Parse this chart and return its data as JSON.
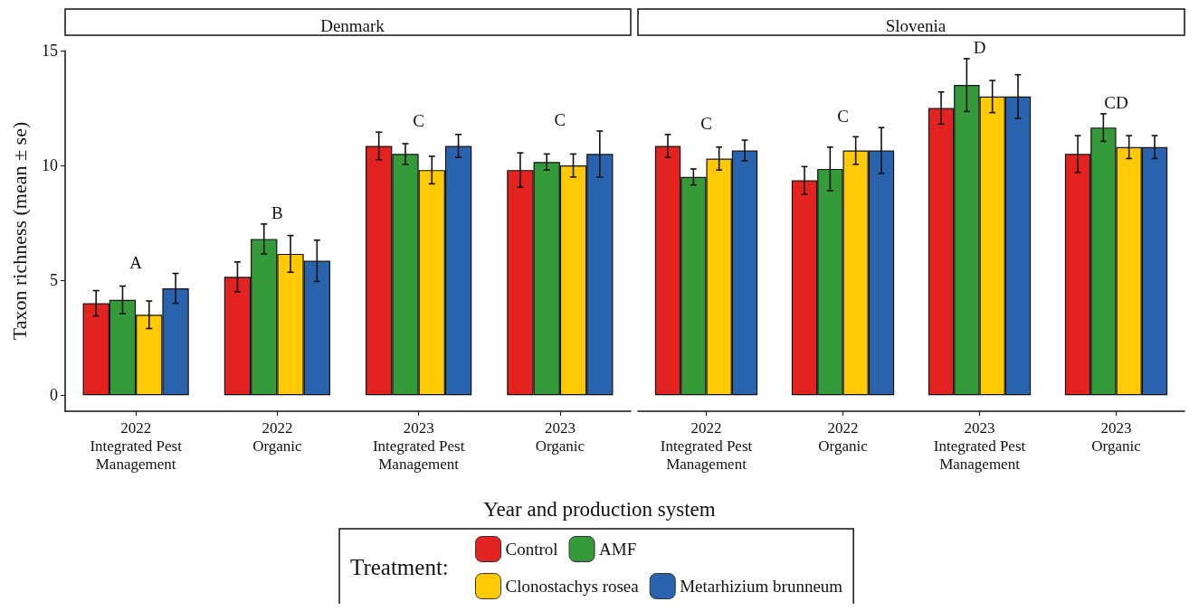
{
  "chart_data": [
    {
      "type": "bar",
      "title": "Denmark",
      "xlabel": "Year and production system",
      "ylabel": "Taxon richness (mean ± se)",
      "legend_title": "Treatment:",
      "legend": "bottom",
      "categories": [
        "2022\nIntegrated Pest\nManagement",
        "2022\nOrganic",
        "2023\nIntegrated Pest\nManagement",
        "2023\nOrganic"
      ],
      "series": [
        {
          "name": "Control",
          "color": "#e32320",
          "values": [
            4.0,
            5.15,
            10.85,
            9.8
          ],
          "errors": [
            0.55,
            0.65,
            0.6,
            0.75
          ]
        },
        {
          "name": "AMF",
          "color": "#349a3a",
          "values": [
            4.15,
            6.8,
            10.5,
            10.15
          ],
          "errors": [
            0.6,
            0.65,
            0.45,
            0.35
          ]
        },
        {
          "name": "Clonostachys rosea",
          "color": "#ffca05",
          "values": [
            3.5,
            6.15,
            9.8,
            10.0
          ],
          "errors": [
            0.6,
            0.8,
            0.6,
            0.5
          ]
        },
        {
          "name": "Metarhizium brunneum",
          "color": "#2a63ad",
          "values": [
            4.65,
            5.85,
            10.85,
            10.5
          ],
          "errors": [
            0.65,
            0.9,
            0.5,
            1.0
          ]
        }
      ],
      "annotations": [
        "A",
        "B",
        "C",
        "C"
      ],
      "ylim": [
        -0.7,
        15
      ],
      "yticks": [
        0,
        5,
        10,
        15
      ],
      "grid": false
    },
    {
      "type": "bar",
      "title": "Slovenia",
      "tick_labels": "x",
      "categories": [
        "2022\nIntegrated Pest\nManagement",
        "2022\nOrganic",
        "2023\nIntegrated Pest\nManagement",
        "2023\nOrganic"
      ],
      "series": [
        {
          "color": "#e32320",
          "values": [
            10.85,
            9.35,
            12.5,
            10.5
          ],
          "errors": [
            0.5,
            0.6,
            0.7,
            0.8
          ]
        },
        {
          "color": "#349a3a",
          "values": [
            9.5,
            9.85,
            13.5,
            11.65
          ],
          "errors": [
            0.35,
            0.95,
            1.15,
            0.6
          ]
        },
        {
          "color": "#ffca05",
          "values": [
            10.3,
            10.65,
            13.0,
            10.8
          ],
          "errors": [
            0.5,
            0.6,
            0.7,
            0.5
          ]
        },
        {
          "color": "#2a63ad",
          "values": [
            10.65,
            10.65,
            13.0,
            10.8
          ],
          "errors": [
            0.45,
            1.0,
            0.95,
            0.5
          ]
        }
      ],
      "annotations": [
        "C",
        "C",
        "D",
        "CD"
      ],
      "ylim": [
        -0.7,
        15
      ],
      "yticks": [
        0,
        5,
        10,
        15
      ],
      "grid": false
    }
  ]
}
